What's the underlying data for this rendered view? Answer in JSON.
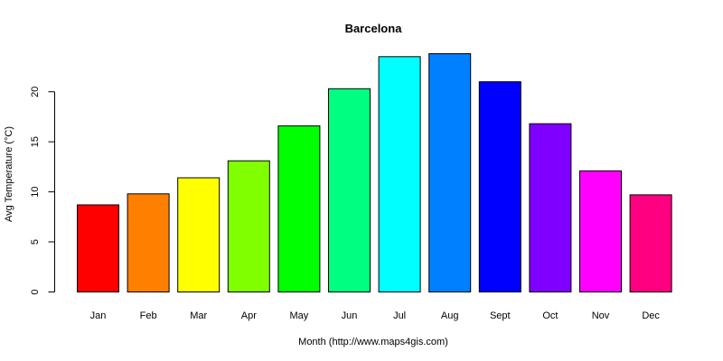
{
  "chart_data": {
    "type": "bar",
    "title": "Barcelona",
    "xlabel": "Month (http://www.maps4gis.com)",
    "ylabel": "Avg Temperature (°C)",
    "categories": [
      "Jan",
      "Feb",
      "Mar",
      "Apr",
      "May",
      "Jun",
      "Jul",
      "Aug",
      "Sept",
      "Oct",
      "Nov",
      "Dec"
    ],
    "values": [
      8.7,
      9.8,
      11.4,
      13.1,
      16.6,
      20.3,
      23.5,
      23.8,
      21.0,
      16.8,
      12.1,
      9.7
    ],
    "colors": [
      "#FF0000",
      "#FF8000",
      "#FFFF00",
      "#80FF00",
      "#00FF00",
      "#00FF80",
      "#00FFFF",
      "#0080FF",
      "#0000FF",
      "#8000FF",
      "#FF00FF",
      "#FF0080"
    ],
    "ylim": [
      0,
      23.8
    ],
    "yticks": [
      0,
      5,
      10,
      15,
      20
    ],
    "grid": false,
    "legend": "none"
  }
}
